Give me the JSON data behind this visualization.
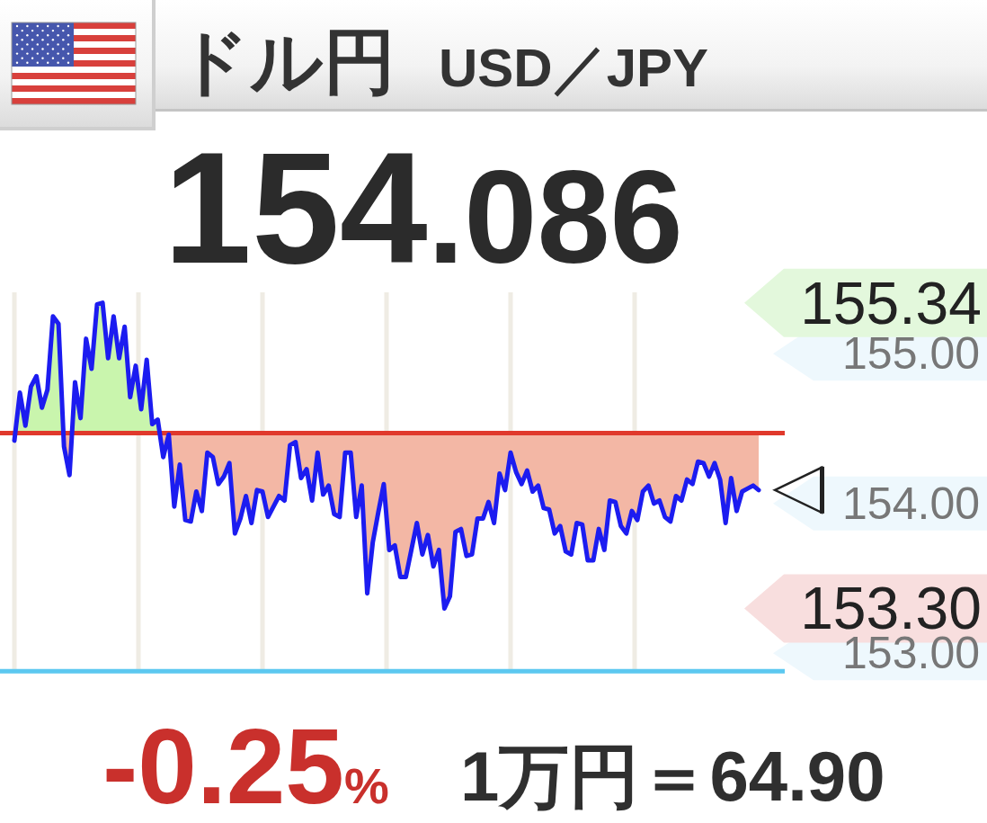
{
  "chart_data": {
    "type": "area",
    "title": "ドル円",
    "subtitle": "USD／JPY",
    "categories": [
      null,
      null,
      null,
      null,
      null,
      null,
      null,
      null,
      null,
      null,
      null,
      null,
      null,
      null,
      null,
      null,
      null,
      null,
      null,
      null,
      null,
      null,
      null,
      null,
      null,
      null,
      null,
      null,
      null,
      null,
      null,
      null,
      null,
      null,
      null,
      null,
      null,
      null,
      null,
      null,
      null,
      null,
      null,
      null,
      null,
      null,
      null,
      null,
      null,
      null,
      null,
      null,
      null,
      null,
      null,
      null,
      null,
      null,
      null,
      null,
      null,
      null,
      null,
      null,
      null,
      null,
      null,
      null,
      null,
      null,
      null,
      null,
      null,
      null,
      null,
      null,
      null,
      null,
      null,
      null,
      null,
      null,
      null,
      null,
      null,
      null,
      null,
      null,
      null,
      null,
      null,
      null,
      null,
      null,
      null,
      null,
      null,
      null,
      null,
      null,
      null,
      null,
      null,
      null,
      null,
      null,
      null,
      null,
      null,
      null,
      null,
      null,
      null,
      null,
      null,
      null,
      null,
      null,
      null,
      null,
      null,
      null,
      null,
      null,
      null,
      null,
      null,
      null,
      null,
      null,
      null,
      null,
      null,
      null,
      null,
      null
    ],
    "series": [
      {
        "color": "#1c1cf0",
        "values": [
          154.42,
          154.74,
          154.52,
          154.78,
          154.85,
          154.64,
          154.76,
          155.25,
          155.2,
          154.38,
          154.19,
          154.81,
          154.57,
          155.1,
          154.9,
          155.33,
          155.34,
          154.97,
          155.25,
          154.97,
          155.18,
          154.71,
          154.92,
          154.63,
          154.96,
          154.53,
          154.56,
          154.31,
          154.46,
          153.98,
          154.26,
          153.89,
          153.88,
          154.08,
          153.95,
          154.34,
          154.31,
          154.13,
          154.18,
          154.27,
          153.8,
          153.9,
          154.05,
          153.87,
          154.09,
          154.08,
          153.91,
          153.98,
          154.05,
          154.02,
          154.39,
          154.41,
          154.17,
          154.23,
          154.02,
          154.34,
          154.06,
          154.12,
          153.93,
          153.91,
          154.34,
          154.34,
          153.91,
          154.12,
          153.4,
          153.74,
          153.94,
          154.13,
          153.69,
          153.72,
          153.51,
          153.51,
          153.69,
          153.87,
          153.66,
          153.79,
          153.58,
          153.69,
          153.3,
          153.38,
          153.81,
          153.83,
          153.65,
          153.66,
          153.9,
          153.9,
          154.01,
          153.87,
          154.2,
          154.09,
          154.34,
          154.21,
          154.13,
          154.22,
          154.08,
          154.12,
          153.97,
          153.96,
          153.8,
          153.85,
          153.68,
          153.66,
          153.87,
          153.86,
          153.62,
          153.62,
          153.83,
          153.69,
          154.02,
          154.01,
          153.85,
          153.8,
          153.95,
          153.89,
          154.08,
          154.12,
          154.0,
          154.02,
          153.91,
          153.88,
          154.05,
          154.02,
          154.16,
          154.13,
          154.28,
          154.27,
          154.18,
          154.27,
          154.16,
          153.87,
          154.17,
          153.95,
          154.08,
          154.1,
          154.12,
          154.09
        ]
      }
    ],
    "ylim": [
      152.87,
      155.41
    ],
    "yticks": [
      {
        "value": 153,
        "label": "153.00"
      },
      {
        "value": 154,
        "label": "154.00"
      },
      {
        "value": 155,
        "label": "155.00"
      }
    ],
    "ref_lines": [
      {
        "axis": "y",
        "value": 154.47,
        "color": "#e0392c"
      },
      {
        "axis": "y",
        "value": 152.88,
        "color": "#5cc8f0"
      }
    ],
    "annotations": [
      "155.34",
      "153.30",
      "154.086",
      "-0.25%",
      "1万円＝64.90"
    ],
    "grid": "x",
    "tick_labels": "y"
  }
}
